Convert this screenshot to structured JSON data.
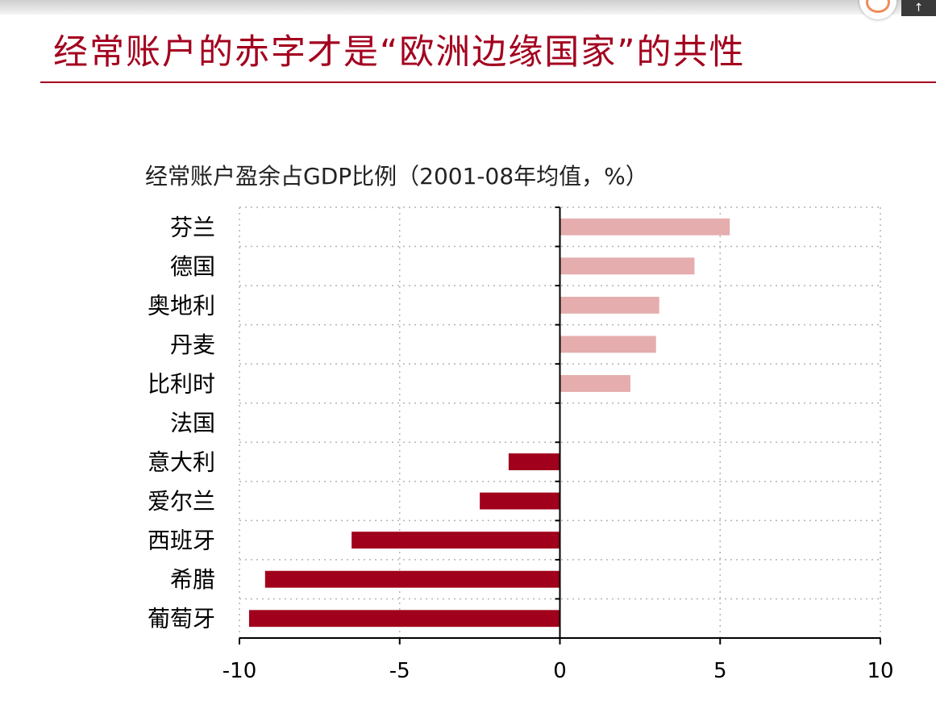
{
  "page_title": "经常账户的赤字才是“欧洲边缘国家”的共性",
  "top_right_glyph": "↑",
  "chart_data": {
    "type": "bar",
    "orientation": "horizontal",
    "title": "经常账户盈余占GDP比例（2001-08年均值，%）",
    "categories": [
      "芬兰",
      "德国",
      "奥地利",
      "丹麦",
      "比利时",
      "法国",
      "意大利",
      "爱尔兰",
      "西班牙",
      "希腊",
      "葡萄牙"
    ],
    "values": [
      5.3,
      4.2,
      3.1,
      3.0,
      2.2,
      0.0,
      -1.6,
      -2.5,
      -6.5,
      -9.2,
      -9.7
    ],
    "xlim": [
      -10,
      10
    ],
    "xticks": [
      -10,
      -5,
      0,
      5,
      10
    ],
    "xtick_labels": [
      "-10",
      "-5",
      "0",
      "5",
      "10"
    ],
    "grid": true,
    "colors": {
      "positive": "#e5adad",
      "negative": "#a0001c",
      "accent": "#a3001e"
    }
  }
}
